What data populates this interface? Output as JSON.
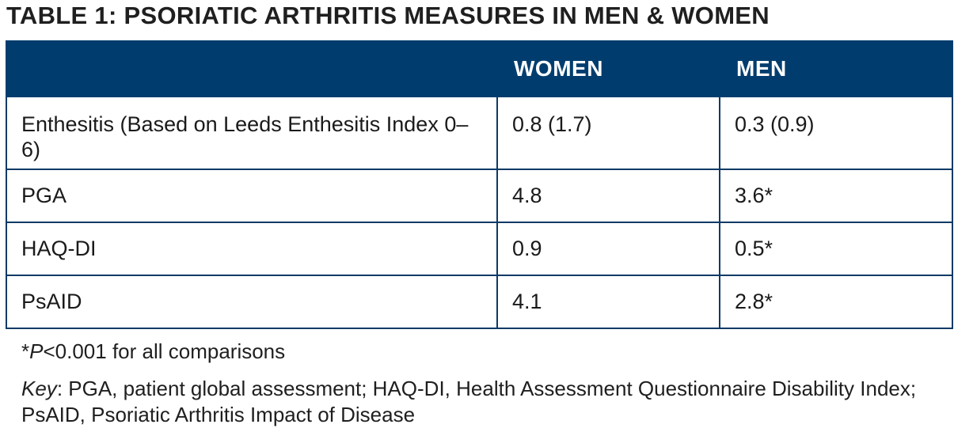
{
  "title": "TABLE 1: PSORIATIC ARTHRITIS MEASURES IN MEN & WOMEN",
  "table": {
    "headers": [
      "",
      "WOMEN",
      "MEN"
    ],
    "rows": [
      {
        "measure": "Enthesitis (Based on Leeds Enthesitis Index 0–6)",
        "women": "0.8 (1.7)",
        "men": "0.3 (0.9)"
      },
      {
        "measure": "PGA",
        "women": "4.8",
        "men": "3.6*"
      },
      {
        "measure": "HAQ-DI",
        "women": "0.9",
        "men": "0.5*"
      },
      {
        "measure": "PsAID",
        "women": "4.1",
        "men": "2.8*"
      }
    ]
  },
  "footnotes": {
    "sig_star": "*",
    "sig_p": "P",
    "sig_rest": "<0.001 for all comparisons",
    "key_label": "Key",
    "key_text": ": PGA, patient global assessment; HAQ-DI, Health Assessment Questionnaire Disability Index; PsAID, Psoriatic Arthritis Impact of Disease"
  },
  "colors": {
    "header_background": "#003d6e",
    "header_text": "#ffffff",
    "border": "#0d3a66"
  }
}
